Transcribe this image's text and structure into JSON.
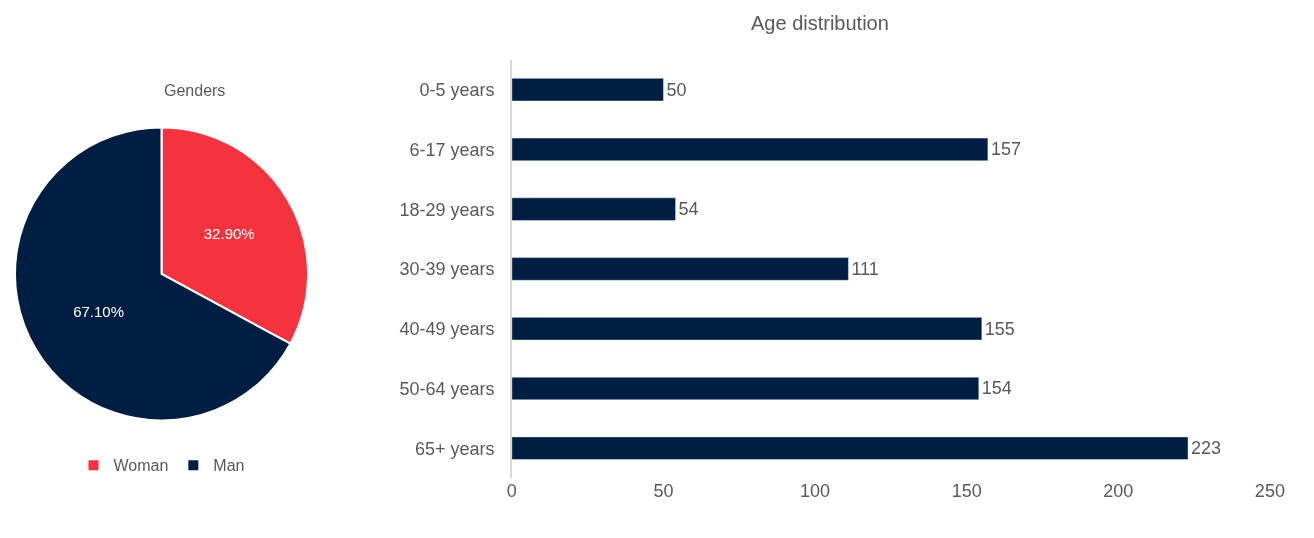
{
  "chart_data": [
    {
      "type": "pie",
      "title": "Genders",
      "categories": [
        "Woman",
        "Man"
      ],
      "values": [
        32.9,
        67.1
      ],
      "colors": [
        "#f5333f",
        "#001e41"
      ],
      "value_labels": [
        "32.90%",
        "67.10%"
      ],
      "legend": "bottom"
    },
    {
      "type": "bar",
      "orientation": "horizontal",
      "title": "Age distribution",
      "categories": [
        "0-5 years",
        "6-17 years",
        "18-29 years",
        "30-39 years",
        "40-49 years",
        "50-64 years",
        "65+ years"
      ],
      "values": [
        50,
        157,
        54,
        111,
        155,
        154,
        223
      ],
      "color": "#001e41",
      "xlim": [
        0,
        250
      ],
      "xticks": [
        0,
        50,
        100,
        150,
        200,
        250
      ],
      "data_labels": true
    }
  ]
}
